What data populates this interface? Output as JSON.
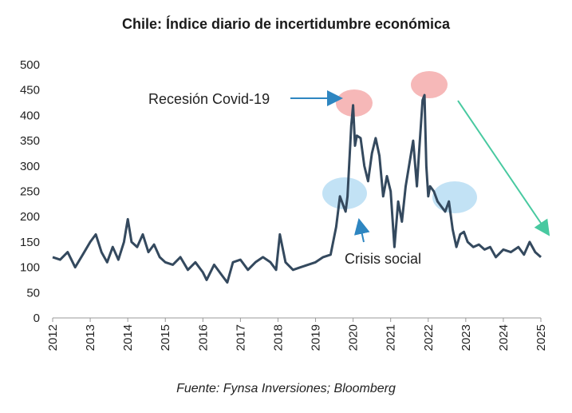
{
  "chart_data": {
    "type": "line",
    "title": "Chile: Índice diario de incertidumbre económica",
    "source": "Fuente: Fynsa Inversiones; Bloomberg",
    "xlabel": "",
    "ylabel": "",
    "xlim": [
      2012,
      2025
    ],
    "ylim": [
      0,
      500
    ],
    "y_ticks": [
      "0",
      "50",
      "100",
      "150",
      "200",
      "250",
      "300",
      "350",
      "400",
      "450",
      "500"
    ],
    "x_ticks": [
      "2012",
      "2013",
      "2014",
      "2015",
      "2016",
      "2017",
      "2018",
      "2019",
      "2020",
      "2021",
      "2022",
      "2023",
      "2024",
      "2025"
    ],
    "grid": false,
    "legend": "none",
    "line_color": "#34495e",
    "series": [
      {
        "x": [
          2012.0,
          2012.2,
          2012.4,
          2012.6,
          2012.8,
          2013.0,
          2013.15,
          2013.3,
          2013.45,
          2013.6,
          2013.75,
          2013.9,
          2014.0,
          2014.1,
          2014.25,
          2014.4,
          2014.55,
          2014.7,
          2014.85,
          2015.0,
          2015.2,
          2015.4,
          2015.6,
          2015.8,
          2016.0,
          2016.1,
          2016.3,
          2016.5,
          2016.65,
          2016.8,
          2017.0,
          2017.2,
          2017.4,
          2017.6,
          2017.8,
          2017.95,
          2018.05,
          2018.2,
          2018.4,
          2018.6,
          2018.8,
          2019.0,
          2019.2,
          2019.4,
          2019.55,
          2019.65,
          2019.75,
          2019.8,
          2019.85,
          2019.95,
          2020.0,
          2020.05,
          2020.1,
          2020.2,
          2020.3,
          2020.4,
          2020.5,
          2020.6,
          2020.7,
          2020.8,
          2020.9,
          2021.0,
          2021.1,
          2021.2,
          2021.3,
          2021.4,
          2021.5,
          2021.6,
          2021.7,
          2021.75,
          2021.85,
          2021.9,
          2021.95,
          2022.0,
          2022.05,
          2022.15,
          2022.25,
          2022.35,
          2022.45,
          2022.55,
          2022.65,
          2022.75,
          2022.85,
          2022.95,
          2023.05,
          2023.2,
          2023.35,
          2023.5,
          2023.65,
          2023.8,
          2024.0,
          2024.2,
          2024.4,
          2024.55,
          2024.7,
          2024.85,
          2025.0
        ],
        "y": [
          120,
          115,
          130,
          100,
          125,
          150,
          165,
          130,
          110,
          140,
          115,
          150,
          195,
          150,
          140,
          165,
          130,
          145,
          120,
          110,
          105,
          120,
          95,
          110,
          90,
          75,
          105,
          85,
          70,
          110,
          115,
          95,
          110,
          120,
          110,
          95,
          165,
          110,
          95,
          100,
          105,
          110,
          120,
          125,
          180,
          240,
          220,
          210,
          240,
          380,
          420,
          340,
          360,
          355,
          300,
          270,
          325,
          355,
          320,
          240,
          280,
          250,
          140,
          230,
          190,
          260,
          305,
          350,
          260,
          320,
          430,
          440,
          300,
          240,
          260,
          250,
          230,
          220,
          210,
          230,
          175,
          140,
          165,
          170,
          150,
          140,
          145,
          135,
          140,
          120,
          135,
          130,
          140,
          125,
          150,
          130,
          120
        ]
      }
    ],
    "annotations": [
      {
        "label": "Recesión Covid-19"
      },
      {
        "label": "Crisis social"
      }
    ]
  }
}
